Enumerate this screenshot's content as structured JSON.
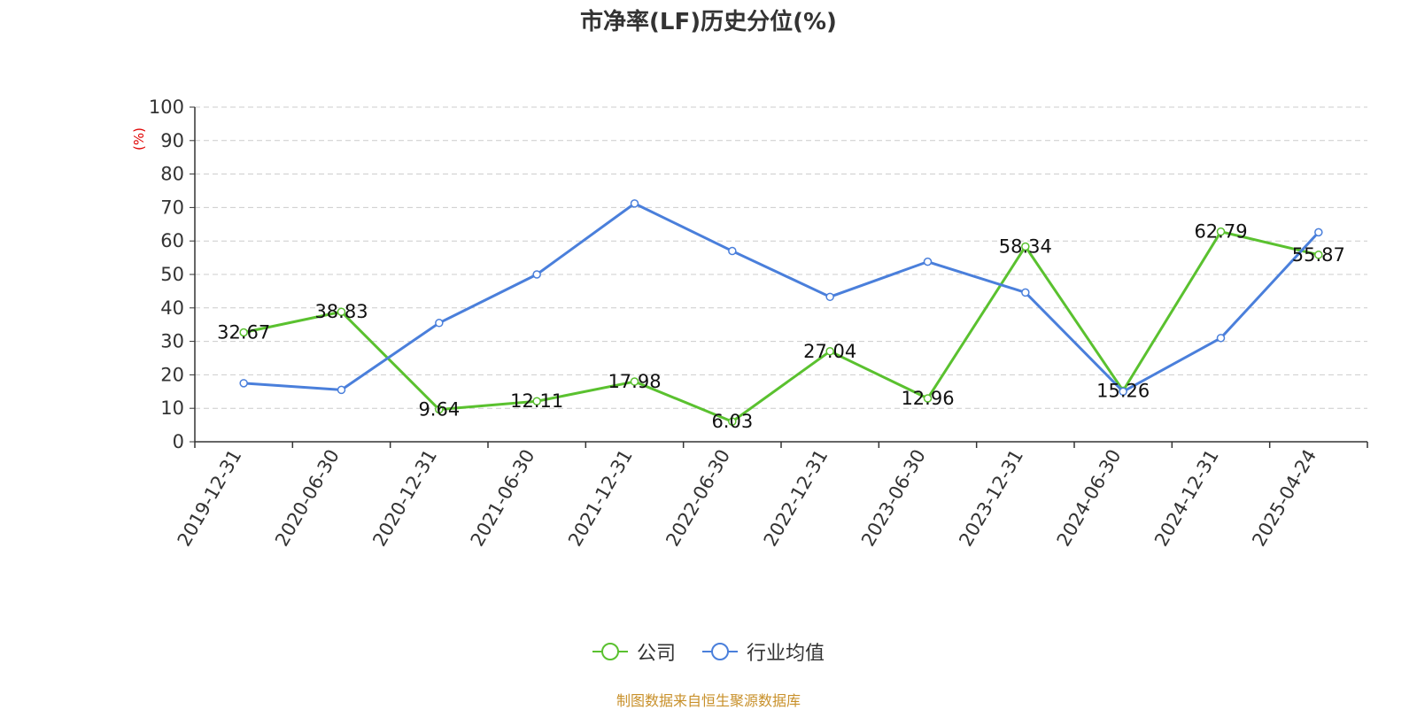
{
  "title": "市净率(LF)历史分位(%)",
  "source_note": "制图数据来自恒生聚源数据库",
  "colors": {
    "company": "#5ac12f",
    "industry": "#4a7fdb",
    "unit_label": "#e00000",
    "grid": "#cccccc"
  },
  "chart_data": {
    "type": "line",
    "title": "市净率(LF)历史分位(%)",
    "ylabel": "(%)",
    "ylim": [
      0,
      100
    ],
    "yticks": [
      0,
      10,
      20,
      30,
      40,
      50,
      60,
      70,
      80,
      90,
      100
    ],
    "grid": true,
    "legend_position": "bottom",
    "categories": [
      "2019-12-31",
      "2020-06-30",
      "2020-12-31",
      "2021-06-30",
      "2021-12-31",
      "2022-06-30",
      "2022-12-31",
      "2023-06-30",
      "2023-12-31",
      "2024-06-30",
      "2024-12-31",
      "2025-04-24"
    ],
    "series": [
      {
        "name": "公司",
        "color": "#5ac12f",
        "show_labels": true,
        "values": [
          32.67,
          38.83,
          9.64,
          12.11,
          17.98,
          6.03,
          27.04,
          12.96,
          58.34,
          15.26,
          62.79,
          55.87
        ]
      },
      {
        "name": "行业均值",
        "color": "#4a7fdb",
        "show_labels": false,
        "values": [
          17.5,
          15.5,
          35.5,
          50.0,
          71.2,
          57.0,
          43.3,
          53.8,
          44.6,
          15.0,
          31.0,
          62.6
        ]
      }
    ]
  }
}
